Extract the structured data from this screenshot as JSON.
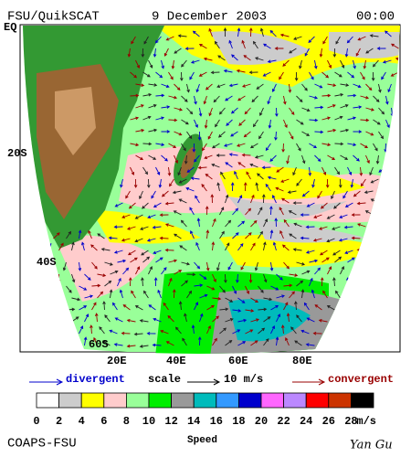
{
  "header": {
    "source": "FSU/QuikSCAT",
    "date": "9 December 2003",
    "time": "00:00"
  },
  "axes": {
    "lat_labels": [
      "EQ",
      "20S",
      "40S",
      "60S"
    ],
    "lon_labels": [
      "20E",
      "40E",
      "60E",
      "80E"
    ]
  },
  "legend": {
    "divergent": "divergent",
    "scale": "scale",
    "scale_value": "10 m/s",
    "convergent": "convergent"
  },
  "colorbar": {
    "ticks": [
      "0",
      "2",
      "4",
      "6",
      "8",
      "10",
      "12",
      "14",
      "16",
      "18",
      "20",
      "22",
      "24",
      "26",
      "28"
    ],
    "unit": "m/s",
    "title": "Speed",
    "colors": [
      "#ffffff",
      "#cccccc",
      "#ffff00",
      "#ffcccc",
      "#99ff99",
      "#00ee00",
      "#999999",
      "#00bbbb",
      "#3399ff",
      "#0000cc",
      "#ff66ff",
      "#bb88ff",
      "#ff0000",
      "#cc3300",
      "#000000"
    ]
  },
  "footer": {
    "org": "COAPS-FSU",
    "author": "Yan Gu"
  }
}
